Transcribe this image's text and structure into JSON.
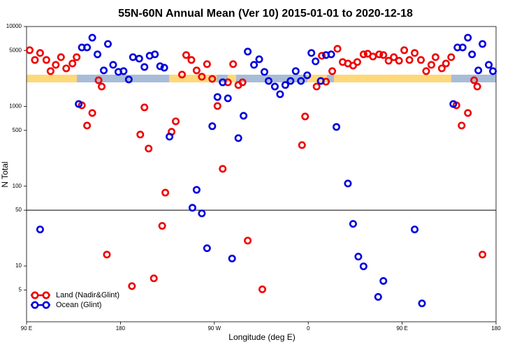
{
  "chart_data": {
    "type": "scatter",
    "title": "55N-60N Annual Mean (Ver 10)   2015-01-01 to 2020-12-18",
    "x_label": "Longitude (deg E)",
    "y_label": "N Total",
    "log_y": true,
    "ylim": [
      2,
      10000
    ],
    "yticks": [
      10000,
      5000,
      1000,
      500,
      100,
      50,
      10,
      5
    ],
    "xlim": [
      90,
      540
    ],
    "xticks": [
      {
        "value": 90,
        "label": "90 E"
      },
      {
        "value": 180,
        "label": "180"
      },
      {
        "value": 270,
        "label": "90 W"
      },
      {
        "value": 360,
        "label": "0"
      },
      {
        "value": 450,
        "label": "90 E"
      },
      {
        "value": 540,
        "label": "180"
      }
    ],
    "hline": 50,
    "legend": "lower left",
    "series": [
      {
        "name": "Land (Nadir&Glint)",
        "color": "#ee0000",
        "x": [
          93,
          98,
          103,
          109,
          113,
          118,
          123,
          128,
          134,
          138,
          143,
          148,
          153,
          159,
          162,
          167,
          191,
          199,
          203,
          207,
          212,
          220,
          223,
          229,
          233,
          239,
          243,
          248,
          253,
          258,
          263,
          268,
          273,
          278,
          283,
          288,
          293,
          297,
          302,
          316,
          354,
          357,
          368,
          373,
          377,
          383,
          388,
          393,
          398,
          403,
          407,
          413,
          417,
          422,
          428,
          432,
          437,
          442,
          447,
          452,
          457,
          462,
          468,
          473,
          478,
          482,
          488,
          492,
          497,
          502,
          507,
          513,
          519,
          522,
          527
        ],
        "values": [
          5050,
          3810,
          4660,
          3810,
          2760,
          3310,
          4130,
          2990,
          3440,
          4130,
          1030,
          575,
          826,
          2120,
          1770,
          13.9,
          5.6,
          443,
          970,
          296,
          7.0,
          31.8,
          83,
          480,
          649,
          2500,
          4390,
          3810,
          2820,
          2350,
          3380,
          2210,
          1010,
          165,
          2000,
          3380,
          1850,
          2000,
          20.8,
          5.1,
          327,
          747,
          1770,
          4300,
          2040,
          2760,
          5260,
          3590,
          3440,
          3240,
          3590,
          4480,
          4560,
          4210,
          4480,
          4390,
          3730,
          4130,
          3730,
          5050,
          3810,
          4660,
          3810,
          2760,
          3310,
          4130,
          2990,
          3440,
          4130,
          1030,
          575,
          826,
          2120,
          1770,
          13.9
        ]
      },
      {
        "name": "Ocean (Glint)",
        "color": "#0000dd",
        "x": [
          103,
          140,
          143,
          148,
          153,
          158,
          164,
          168,
          173,
          178,
          183,
          188,
          192,
          198,
          203,
          208,
          213,
          218,
          222,
          227,
          249,
          253,
          258,
          263,
          268,
          273,
          278,
          283,
          287,
          293,
          298,
          302,
          308,
          313,
          318,
          322,
          328,
          333,
          338,
          343,
          348,
          353,
          359,
          363,
          367,
          372,
          377,
          382,
          387,
          398,
          403,
          408,
          413,
          427,
          432,
          462,
          469,
          499,
          503,
          508,
          513,
          517,
          523,
          527,
          533,
          537
        ],
        "values": [
          28.7,
          1070,
          5470,
          5470,
          7250,
          4480,
          2820,
          6050,
          3310,
          2700,
          2760,
          2170,
          4130,
          3960,
          3110,
          4300,
          4480,
          3180,
          3050,
          417,
          53.6,
          90,
          45.6,
          16.7,
          564,
          1310,
          2000,
          1260,
          12.4,
          400,
          762,
          4850,
          3310,
          3890,
          2700,
          2080,
          1770,
          1420,
          1850,
          2080,
          2760,
          2080,
          2450,
          4660,
          3660,
          2080,
          4390,
          4480,
          552,
          108,
          33.7,
          13.1,
          9.9,
          4.1,
          6.5,
          28.7,
          3.4,
          1070,
          5470,
          5470,
          7250,
          4480,
          2820,
          6050,
          3310,
          2760
        ]
      }
    ]
  }
}
